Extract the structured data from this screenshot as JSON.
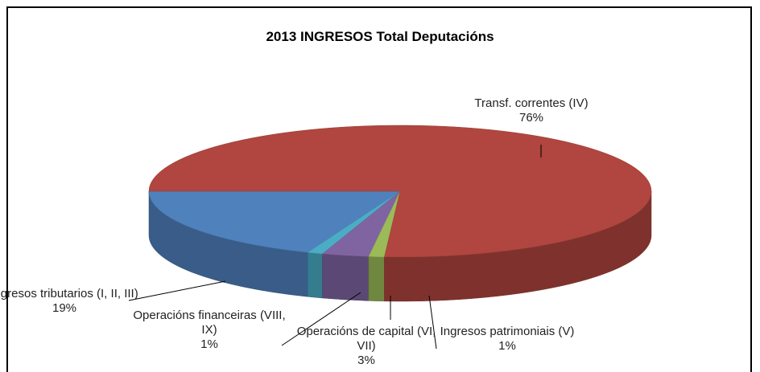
{
  "chart_data": {
    "type": "pie",
    "title": "2013  INGRESOS Total Deputacións",
    "categories": [
      "Ingresos tributarios (I, II, III)",
      "Operacións financeiras (VIII, IX)",
      "Operacións de capital (VI, VII)",
      "Ingresos patrimoniais (V)",
      "Transf. correntes (IV)"
    ],
    "values": [
      19,
      1,
      3,
      1,
      76
    ],
    "value_labels": [
      "19%",
      "1%",
      "3%",
      "1%",
      "76%"
    ],
    "colors": [
      "#4f81bd",
      "#4bacc6",
      "#8064a2",
      "#9bbb59",
      "#b0463f"
    ]
  }
}
